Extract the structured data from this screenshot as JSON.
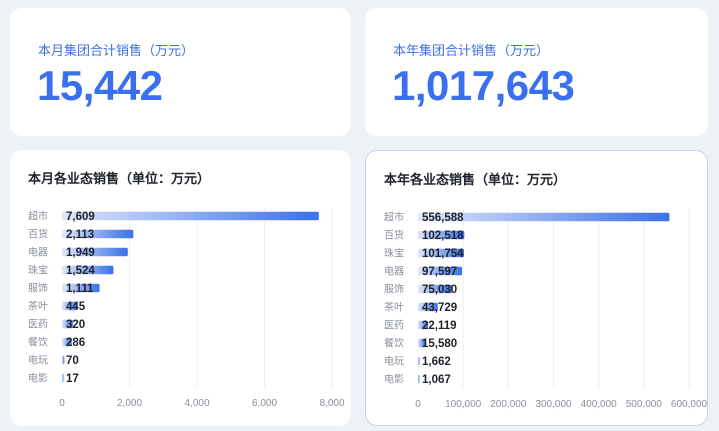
{
  "kpis": [
    {
      "title": "本月集团合计销售（万元）",
      "value": "15,442"
    },
    {
      "title": "本年集团合计销售（万元）",
      "value": "1,017,643"
    }
  ],
  "chart_data": [
    {
      "type": "bar",
      "orientation": "horizontal",
      "title": "本月各业态销售（单位：万元）",
      "categories": [
        "超市",
        "百货",
        "电器",
        "珠宝",
        "服饰",
        "茶叶",
        "医药",
        "餐饮",
        "电玩",
        "电影"
      ],
      "values": [
        7609,
        2113,
        1949,
        1524,
        1111,
        445,
        320,
        286,
        70,
        17
      ],
      "value_labels": [
        "7,609",
        "2,113",
        "1,949",
        "1,524",
        "1,111",
        "445",
        "320",
        "286",
        "70",
        "17"
      ],
      "xlim": [
        0,
        8000
      ],
      "xticks": [
        0,
        2000,
        4000,
        6000,
        8000
      ],
      "xtick_labels": [
        "0",
        "2,000",
        "4,000",
        "6,000",
        "8,000"
      ],
      "grid": true,
      "colors": {
        "start": "#dfe8fb",
        "end": "#3b70e8"
      }
    },
    {
      "type": "bar",
      "orientation": "horizontal",
      "title": "本年各业态销售（单位：万元）",
      "categories": [
        "超市",
        "百货",
        "珠宝",
        "电器",
        "服饰",
        "茶叶",
        "医药",
        "餐饮",
        "电玩",
        "电影"
      ],
      "values": [
        556588,
        102518,
        101754,
        97597,
        75030,
        43729,
        22119,
        15580,
        1662,
        1067
      ],
      "value_labels": [
        "556,588",
        "102,518",
        "101,754",
        "97,597",
        "75,030",
        "43,729",
        "22,119",
        "15,580",
        "1,662",
        "1,067"
      ],
      "xlim": [
        0,
        600000
      ],
      "xticks": [
        0,
        100000,
        200000,
        300000,
        400000,
        500000,
        600000
      ],
      "xtick_labels": [
        "0",
        "100,000",
        "200,000",
        "300,000",
        "400,000",
        "500,000",
        "600,000"
      ],
      "grid": true,
      "colors": {
        "start": "#dfe8fb",
        "end": "#3b70e8"
      }
    }
  ]
}
